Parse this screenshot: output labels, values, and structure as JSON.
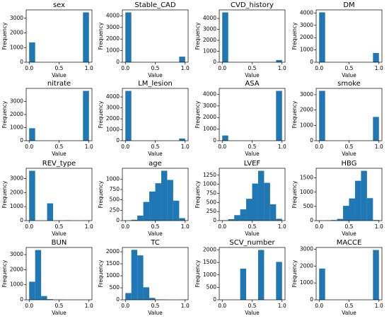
{
  "chart_data": [
    {
      "type": "histogram",
      "title": "sex",
      "xlabel": "Value",
      "ylabel": "Frequency",
      "bins": [
        0,
        0.1,
        0.2,
        0.3,
        0.4,
        0.5,
        0.6,
        0.7,
        0.8,
        0.9,
        1
      ],
      "values": [
        1350,
        0,
        0,
        0,
        0,
        0,
        0,
        0,
        0,
        3400
      ],
      "color": "#1f77b4",
      "xlim": [
        -0.05,
        1.05
      ],
      "ylim": [
        0,
        3570
      ],
      "xticks": [
        {
          "value": 0,
          "label": "0.0"
        },
        0.5,
        {
          "value": 1,
          "label": "1.0"
        }
      ],
      "yticks": [
        0,
        1000,
        2000,
        3000
      ]
    },
    {
      "type": "histogram",
      "title": "Stable_CAD",
      "xlabel": "Value",
      "ylabel": "Frequency",
      "bins": [
        0,
        0.1,
        0.2,
        0.3,
        0.4,
        0.5,
        0.6,
        0.7,
        0.8,
        0.9,
        1
      ],
      "values": [
        4300,
        0,
        0,
        0,
        0,
        0,
        0,
        0,
        0,
        480
      ],
      "color": "#1f77b4",
      "xlim": [
        -0.05,
        1.05
      ],
      "ylim": [
        0,
        4515
      ],
      "xticks": [
        {
          "value": 0,
          "label": "0.0"
        },
        0.5,
        {
          "value": 1,
          "label": "1.0"
        }
      ],
      "yticks": [
        0,
        1000,
        2000,
        3000,
        4000
      ]
    },
    {
      "type": "histogram",
      "title": "CVD_history",
      "xlabel": "Value",
      "ylabel": "Frequency",
      "bins": [
        0,
        0.1,
        0.2,
        0.3,
        0.4,
        0.5,
        0.6,
        0.7,
        0.8,
        0.9,
        1
      ],
      "values": [
        4550,
        0,
        0,
        0,
        0,
        0,
        0,
        0,
        0,
        200
      ],
      "color": "#1f77b4",
      "xlim": [
        -0.05,
        1.05
      ],
      "ylim": [
        0,
        4780
      ],
      "xticks": [
        {
          "value": 0,
          "label": "0.0"
        },
        0.5,
        {
          "value": 1,
          "label": "1.0"
        }
      ],
      "yticks": [
        0,
        1000,
        2000,
        3000,
        4000
      ]
    },
    {
      "type": "histogram",
      "title": "DM",
      "xlabel": "Value",
      "ylabel": "Frequency",
      "bins": [
        0,
        0.1,
        0.2,
        0.3,
        0.4,
        0.5,
        0.6,
        0.7,
        0.8,
        0.9,
        1
      ],
      "values": [
        4050,
        0,
        0,
        0,
        0,
        0,
        0,
        0,
        0,
        750
      ],
      "color": "#1f77b4",
      "xlim": [
        -0.05,
        1.05
      ],
      "ylim": [
        0,
        4250
      ],
      "xticks": [
        {
          "value": 0,
          "label": "0.0"
        },
        0.5,
        {
          "value": 1,
          "label": "1.0"
        }
      ],
      "yticks": [
        0,
        1000,
        2000,
        3000,
        4000
      ]
    },
    {
      "type": "histogram",
      "title": "nitrate",
      "xlabel": "Value",
      "ylabel": "Frequency",
      "bins": [
        0,
        0.1,
        0.2,
        0.3,
        0.4,
        0.5,
        0.6,
        0.7,
        0.8,
        0.9,
        1
      ],
      "values": [
        950,
        0,
        0,
        0,
        0,
        0,
        0,
        0,
        0,
        3800
      ],
      "color": "#1f77b4",
      "xlim": [
        -0.05,
        1.05
      ],
      "ylim": [
        0,
        3990
      ],
      "xticks": [
        {
          "value": 0,
          "label": "0.0"
        },
        0.5,
        {
          "value": 1,
          "label": "1.0"
        }
      ],
      "yticks": [
        0,
        1000,
        2000,
        3000
      ]
    },
    {
      "type": "histogram",
      "title": "LM_lesion",
      "xlabel": "Value",
      "ylabel": "Frequency",
      "bins": [
        0,
        0.1,
        0.2,
        0.3,
        0.4,
        0.5,
        0.6,
        0.7,
        0.8,
        0.9,
        1
      ],
      "values": [
        4550,
        0,
        0,
        0,
        0,
        0,
        0,
        0,
        0,
        200
      ],
      "color": "#1f77b4",
      "xlim": [
        -0.05,
        1.05
      ],
      "ylim": [
        0,
        4780
      ],
      "xticks": [
        {
          "value": 0,
          "label": "0.0"
        },
        0.5,
        {
          "value": 1,
          "label": "1.0"
        }
      ],
      "yticks": [
        0,
        1000,
        2000,
        3000,
        4000
      ]
    },
    {
      "type": "histogram",
      "title": "ASA",
      "xlabel": "Value",
      "ylabel": "Frequency",
      "bins": [
        0,
        0.1,
        0.2,
        0.3,
        0.4,
        0.5,
        0.6,
        0.7,
        0.8,
        0.9,
        1
      ],
      "values": [
        450,
        0,
        0,
        0,
        0,
        0,
        0,
        0,
        0,
        4300
      ],
      "color": "#1f77b4",
      "xlim": [
        -0.05,
        1.05
      ],
      "ylim": [
        0,
        4515
      ],
      "xticks": [
        {
          "value": 0,
          "label": "0.0"
        },
        0.5,
        {
          "value": 1,
          "label": "1.0"
        }
      ],
      "yticks": [
        0,
        1000,
        2000,
        3000,
        4000
      ]
    },
    {
      "type": "histogram",
      "title": "smoke",
      "xlabel": "Value",
      "ylabel": "Frequency",
      "bins": [
        0,
        0.1,
        0.2,
        0.3,
        0.4,
        0.5,
        0.6,
        0.7,
        0.8,
        0.9,
        1
      ],
      "values": [
        3250,
        0,
        0,
        0,
        0,
        0,
        0,
        0,
        0,
        1550
      ],
      "color": "#1f77b4",
      "xlim": [
        -0.05,
        1.05
      ],
      "ylim": [
        0,
        3410
      ],
      "xticks": [
        {
          "value": 0,
          "label": "0.0"
        },
        0.5,
        {
          "value": 1,
          "label": "1.0"
        }
      ],
      "yticks": [
        0,
        1000,
        2000,
        3000
      ]
    },
    {
      "type": "histogram",
      "title": "REV_type",
      "xlabel": "Value",
      "ylabel": "Frequency",
      "bins": [
        0,
        0.1,
        0.2,
        0.3,
        0.4,
        0.5,
        0.6,
        0.7,
        0.8,
        0.9,
        1
      ],
      "values": [
        3550,
        0,
        0,
        1230,
        0,
        0,
        20,
        0,
        0,
        10
      ],
      "color": "#1f77b4",
      "xlim": [
        -0.05,
        1.05
      ],
      "ylim": [
        0,
        3730
      ],
      "xticks": [
        {
          "value": 0,
          "label": "0.0"
        },
        0.5,
        {
          "value": 1,
          "label": "1.0"
        }
      ],
      "yticks": [
        0,
        1000,
        2000,
        3000
      ]
    },
    {
      "type": "histogram",
      "title": "age",
      "xlabel": "Value",
      "ylabel": "Frequency",
      "bins": [
        0,
        0.1,
        0.2,
        0.3,
        0.4,
        0.5,
        0.6,
        0.7,
        0.8,
        0.9,
        1
      ],
      "values": [
        5,
        20,
        120,
        450,
        700,
        900,
        1200,
        980,
        480,
        60
      ],
      "color": "#1f77b4",
      "xlim": [
        -0.05,
        1.05
      ],
      "ylim": [
        0,
        1260
      ],
      "xticks": [
        {
          "value": 0,
          "label": "0.0"
        },
        0.5,
        {
          "value": 1,
          "label": "1.0"
        }
      ],
      "yticks": [
        0,
        250,
        500,
        750,
        1000
      ]
    },
    {
      "type": "histogram",
      "title": "LVEF",
      "xlabel": "Value",
      "ylabel": "Frequency",
      "bins": [
        0,
        0.1,
        0.2,
        0.3,
        0.4,
        0.5,
        0.6,
        0.7,
        0.8,
        0.9,
        1
      ],
      "values": [
        10,
        40,
        150,
        310,
        600,
        1020,
        1370,
        1040,
        450,
        50
      ],
      "color": "#1f77b4",
      "xlim": [
        -0.05,
        1.05
      ],
      "ylim": [
        0,
        1440
      ],
      "xticks": [
        {
          "value": 0,
          "label": "0.0"
        },
        0.5,
        {
          "value": 1,
          "label": "1.0"
        }
      ],
      "yticks": [
        0,
        250,
        500,
        750,
        1000,
        1250
      ]
    },
    {
      "type": "histogram",
      "title": "HBG",
      "xlabel": "Value",
      "ylabel": "Frequency",
      "bins": [
        0,
        0.1,
        0.2,
        0.3,
        0.4,
        0.5,
        0.6,
        0.7,
        0.8,
        0.9,
        1
      ],
      "values": [
        5,
        10,
        20,
        60,
        520,
        780,
        1400,
        1750,
        790,
        20
      ],
      "color": "#1f77b4",
      "xlim": [
        -0.05,
        1.05
      ],
      "ylim": [
        0,
        1840
      ],
      "xticks": [
        {
          "value": 0,
          "label": "0.0"
        },
        0.5,
        {
          "value": 1,
          "label": "1.0"
        }
      ],
      "yticks": [
        0,
        500,
        1000,
        1500
      ]
    },
    {
      "type": "histogram",
      "title": "BUN",
      "xlabel": "Value",
      "ylabel": "Frequency",
      "bins": [
        0,
        0.1,
        0.2,
        0.3,
        0.4,
        0.5,
        0.6,
        0.7,
        0.8,
        0.9,
        1
      ],
      "values": [
        1200,
        3300,
        250,
        40,
        5,
        5,
        0,
        0,
        0,
        5
      ],
      "color": "#1f77b4",
      "xlim": [
        -0.05,
        1.05
      ],
      "ylim": [
        0,
        3470
      ],
      "xticks": [
        {
          "value": 0,
          "label": "0.0"
        },
        0.5,
        {
          "value": 1,
          "label": "1.0"
        }
      ],
      "yticks": [
        0,
        1000,
        2000,
        3000
      ]
    },
    {
      "type": "histogram",
      "title": "TC",
      "xlabel": "Value",
      "ylabel": "Frequency",
      "bins": [
        0,
        0.1,
        0.2,
        0.3,
        0.4,
        0.5,
        0.6,
        0.7,
        0.8,
        0.9,
        1
      ],
      "values": [
        280,
        2080,
        1850,
        520,
        80,
        10,
        5,
        0,
        0,
        5
      ],
      "color": "#1f77b4",
      "xlim": [
        -0.05,
        1.05
      ],
      "ylim": [
        0,
        2180
      ],
      "xticks": [
        {
          "value": 0,
          "label": "0.0"
        },
        0.5,
        {
          "value": 1,
          "label": "1.0"
        }
      ],
      "yticks": [
        0,
        500,
        1000,
        1500,
        2000
      ]
    },
    {
      "type": "histogram",
      "title": "SCV_number",
      "xlabel": "Value",
      "ylabel": "Frequency",
      "bins": [
        0,
        0.1,
        0.2,
        0.3,
        0.4,
        0.5,
        0.6,
        0.7,
        0.8,
        0.9,
        1
      ],
      "values": [
        0,
        0,
        0,
        1250,
        0,
        0,
        2000,
        0,
        0,
        1520
      ],
      "color": "#1f77b4",
      "xlim": [
        -0.05,
        1.05
      ],
      "ylim": [
        0,
        2100
      ],
      "xticks": [
        {
          "value": 0,
          "label": "0.0"
        },
        0.5,
        {
          "value": 1,
          "label": "1.0"
        }
      ],
      "yticks": [
        0,
        500,
        1000,
        1500,
        2000
      ]
    },
    {
      "type": "histogram",
      "title": "MACCE",
      "xlabel": "Value",
      "ylabel": "Frequency",
      "bins": [
        0,
        0.1,
        0.2,
        0.3,
        0.4,
        0.5,
        0.6,
        0.7,
        0.8,
        0.9,
        1
      ],
      "values": [
        1850,
        0,
        0,
        0,
        0,
        0,
        0,
        0,
        0,
        2950
      ],
      "color": "#1f77b4",
      "xlim": [
        -0.05,
        1.05
      ],
      "ylim": [
        0,
        3100
      ],
      "xticks": [
        {
          "value": 0,
          "label": "0.0"
        },
        0.5,
        {
          "value": 1,
          "label": "1.0"
        }
      ],
      "yticks": [
        0,
        1000,
        2000,
        3000
      ]
    }
  ]
}
